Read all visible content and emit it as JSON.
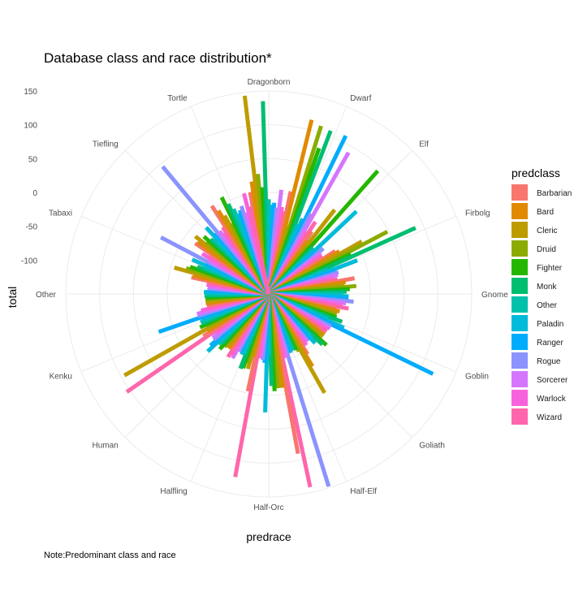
{
  "chart_data": {
    "type": "bar",
    "coord": "polar",
    "title": "Database class and race distribution*",
    "xlabel": "predrace",
    "ylabel": "total",
    "caption": "Note:Predominant class and race",
    "legend_title": "predclass",
    "legend_position": "right",
    "ylim": [
      -150,
      150
    ],
    "yticks": [
      150,
      100,
      50,
      0,
      -50,
      -100
    ],
    "categories": [
      "Dragonborn",
      "Dwarf",
      "Elf",
      "Firbolg",
      "Gnome",
      "Goblin",
      "Goliath",
      "Half-Elf",
      "Half-Orc",
      "Halfling",
      "Human",
      "Kenku",
      "Other",
      "Tabaxi",
      "Tiefling",
      "Tortle"
    ],
    "classes": [
      "Barbarian",
      "Bard",
      "Cleric",
      "Druid",
      "Fighter",
      "Monk",
      "Other",
      "Paladin",
      "Ranger",
      "Rogue",
      "Sorcerer",
      "Warlock",
      "Wizard"
    ],
    "colors": [
      "#F8766D",
      "#E18A00",
      "#BE9C00",
      "#8CAB00",
      "#24B700",
      "#00BE70",
      "#00C1AB",
      "#00BBDA",
      "#00ACFC",
      "#8B93FF",
      "#D575FE",
      "#F962DD",
      "#FF65AC"
    ],
    "series": [
      {
        "name": "Barbarian",
        "values": [
          3,
          5,
          -38,
          -33,
          -21,
          -48,
          -58,
          -44,
          90,
          -3,
          -50,
          -35,
          -58,
          -33,
          -18,
          5
        ]
      },
      {
        "name": "Bard",
        "values": [
          18,
          115,
          -53,
          -28,
          -35,
          -42,
          -48,
          -25,
          -10,
          -55,
          -50,
          -44,
          -56,
          -35,
          -20,
          -6
        ]
      },
      {
        "name": "Cleric",
        "values": [
          145,
          -45,
          8,
          8,
          -38,
          -45,
          -48,
          18,
          -10,
          -35,
          -55,
          95,
          -56,
          -5,
          -12,
          -17
        ]
      },
      {
        "name": "Druid",
        "values": [
          28,
          110,
          -58,
          48,
          -20,
          -46,
          -55,
          -54,
          -10,
          -43,
          -48,
          -46,
          -56,
          -22,
          -30,
          -32
        ]
      },
      {
        "name": "Fighter",
        "values": [
          8,
          78,
          93,
          -15,
          -30,
          -44,
          -36,
          -58,
          -6,
          -34,
          -41,
          -37,
          -57,
          -27,
          -22,
          9
        ]
      },
      {
        "name": "Monk",
        "values": [
          135,
          108,
          -55,
          88,
          -35,
          -34,
          -41,
          -60,
          -14,
          -32,
          -49,
          -42,
          -55,
          -37,
          -32,
          -4
        ]
      },
      {
        "name": "Other",
        "values": [
          -10,
          -38,
          -58,
          -55,
          -40,
          -55,
          -58,
          -59,
          -58,
          -54,
          -45,
          -41,
          -55,
          -46,
          -34,
          -14
        ]
      },
      {
        "name": "Paladin",
        "values": [
          -18,
          -28,
          28,
          -10,
          -32,
          -28,
          -50,
          -57,
          25,
          -52,
          -26,
          -43,
          -54,
          -26,
          -15,
          -23
        ]
      },
      {
        "name": "Ranger",
        "values": [
          -15,
          110,
          -57,
          -45,
          -32,
          120,
          -60,
          -60,
          -48,
          -57,
          -35,
          22,
          -59,
          -47,
          -30,
          -19
        ]
      },
      {
        "name": "Rogue",
        "values": [
          -22,
          -16,
          -45,
          -42,
          -24,
          -46,
          -59,
          148,
          -52,
          -54,
          -44,
          -40,
          -59,
          30,
          95,
          -14
        ]
      },
      {
        "name": "Sorcerer",
        "values": [
          5,
          90,
          -52,
          -44,
          -35,
          -46,
          -59,
          -52,
          -57,
          -41,
          -45,
          -40,
          -59,
          -47,
          -32,
          -25
        ]
      },
      {
        "name": "Warlock",
        "values": [
          -20,
          -42,
          -55,
          -52,
          -40,
          -48,
          -56,
          -56,
          -54,
          -45,
          -53,
          -47,
          -57,
          -35,
          -38,
          3
        ]
      },
      {
        "name": "Wizard",
        "values": [
          -26,
          -23,
          -53,
          -46,
          -30,
          -48,
          -60,
          142,
          125,
          -39,
          105,
          -57,
          -59,
          -46,
          -30,
          -18
        ]
      }
    ]
  }
}
